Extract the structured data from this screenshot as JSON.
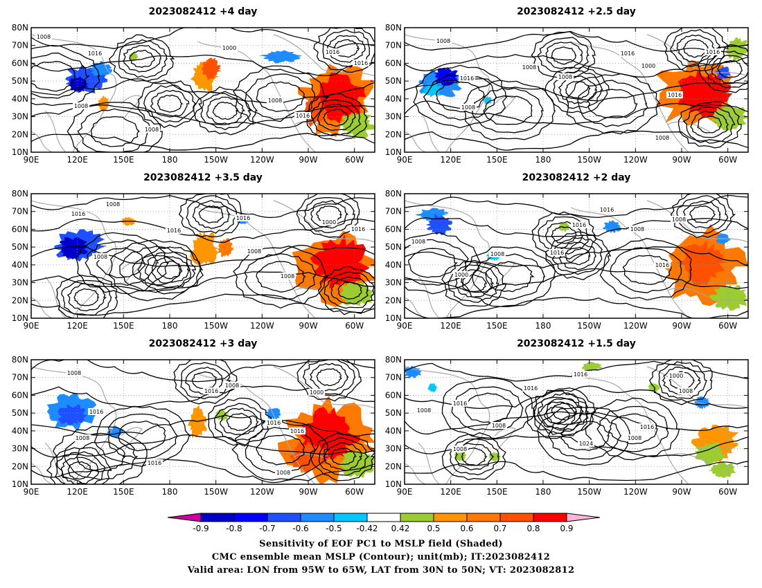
{
  "panels": [
    {
      "title": "2023082412 +4 day",
      "labels": [
        "1008",
        "1016",
        "1008",
        "1000",
        "1016",
        "1008",
        "1016",
        "1008",
        "1016"
      ]
    },
    {
      "title": "2023082412 +2.5 day",
      "labels": [
        "1008",
        "1016",
        "1008",
        "1016",
        "1008",
        "1000",
        "1016",
        "1016",
        "1008",
        "1008"
      ]
    },
    {
      "title": "2023082412 +3.5 day",
      "labels": [
        "1008",
        "1016",
        "1008",
        "1016",
        "1016",
        "1008",
        "1000",
        "1016",
        "1008"
      ]
    },
    {
      "title": "2023082412 +2 day",
      "labels": [
        "1016",
        "1016",
        "1008",
        "1008",
        "1016",
        "1008",
        "1000",
        "1008",
        "1016"
      ]
    },
    {
      "title": "2023082412 +3 day",
      "labels": [
        "1008",
        "1016",
        "1008",
        "1008",
        "1016",
        "1016",
        "1000",
        "1016",
        "1016",
        "1008"
      ]
    },
    {
      "title": "2023082412 +1.5 day",
      "labels": [
        "1008",
        "1016",
        "1008",
        "1016",
        "1024",
        "1008",
        "1016",
        "1000",
        "1008",
        "1016",
        "1008"
      ]
    }
  ],
  "lat_ticks": [
    "80N",
    "70N",
    "60N",
    "50N",
    "40N",
    "30N",
    "20N",
    "10N"
  ],
  "lon_ticks": [
    "90E",
    "120E",
    "150E",
    "180",
    "150W",
    "120W",
    "90W",
    "60W"
  ],
  "colorbar": {
    "colors": [
      "#d000a0",
      "#0000c8",
      "#0000ff",
      "#1e50ff",
      "#1e8cff",
      "#00c8ff",
      "#ffffff",
      "#9bcd32",
      "#ff9600",
      "#ff7800",
      "#ff5000",
      "#ff0000",
      "#ffb4dc"
    ],
    "labels": [
      "-0.9",
      "-0.8",
      "-0.7",
      "-0.6",
      "-0.5",
      "-0.42",
      "0.42",
      "0.5",
      "0.6",
      "0.7",
      "0.8",
      "0.9"
    ]
  },
  "caption": [
    "Sensitivity of EOF PC1 to MSLP field (Shaded)",
    "CMC ensemble mean MSLP (Contour); unit(mb); IT:2023082412",
    "Valid area: LON from 95W to 65W, LAT from 30N to 50N; VT: 2023082812"
  ]
}
